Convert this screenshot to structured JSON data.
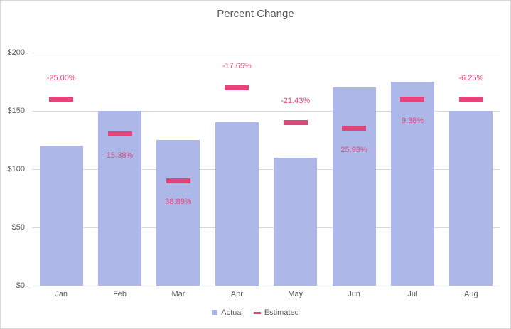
{
  "chart_data": {
    "type": "bar",
    "title": "Percent Change",
    "categories": [
      "Jan",
      "Feb",
      "Mar",
      "Apr",
      "May",
      "Jun",
      "Jul",
      "Aug"
    ],
    "series": [
      {
        "name": "Actual",
        "mark": "bar",
        "color": "#aeb8e8",
        "values": [
          120,
          150,
          125,
          140,
          110,
          170,
          175,
          150
        ]
      },
      {
        "name": "Estimated",
        "mark": "dash",
        "color": "#e5447b",
        "values": [
          160,
          130,
          90,
          170,
          140,
          135,
          160,
          160
        ]
      }
    ],
    "point_labels": {
      "color": "#e5437b",
      "values": [
        "-25.00%",
        "15.38%",
        "38.89%",
        "-17.65%",
        "-21.43%",
        "25.93%",
        "9.38%",
        "-6.25%"
      ]
    },
    "y_axis": {
      "tick_labels": [
        "$0",
        "$50",
        "$100",
        "$150",
        "$200"
      ],
      "min": 0,
      "max": 200,
      "step": 50,
      "grid": true
    },
    "x_axis": {
      "tick_labels": [
        "Jan",
        "Feb",
        "Mar",
        "Apr",
        "May",
        "Jun",
        "Jul",
        "Aug"
      ]
    },
    "legend": {
      "position": "bottom",
      "entries": [
        {
          "label": "Actual",
          "swatch": "square",
          "color": "#aeb8e8"
        },
        {
          "label": "Estimated",
          "swatch": "dash",
          "color": "#e5447b"
        }
      ]
    }
  },
  "colors": {
    "text": "#595959",
    "gridline": "#d9d9d9",
    "axis_line": "#bfbfbf",
    "background": "#ffffff",
    "border": "#d9d9d9"
  }
}
